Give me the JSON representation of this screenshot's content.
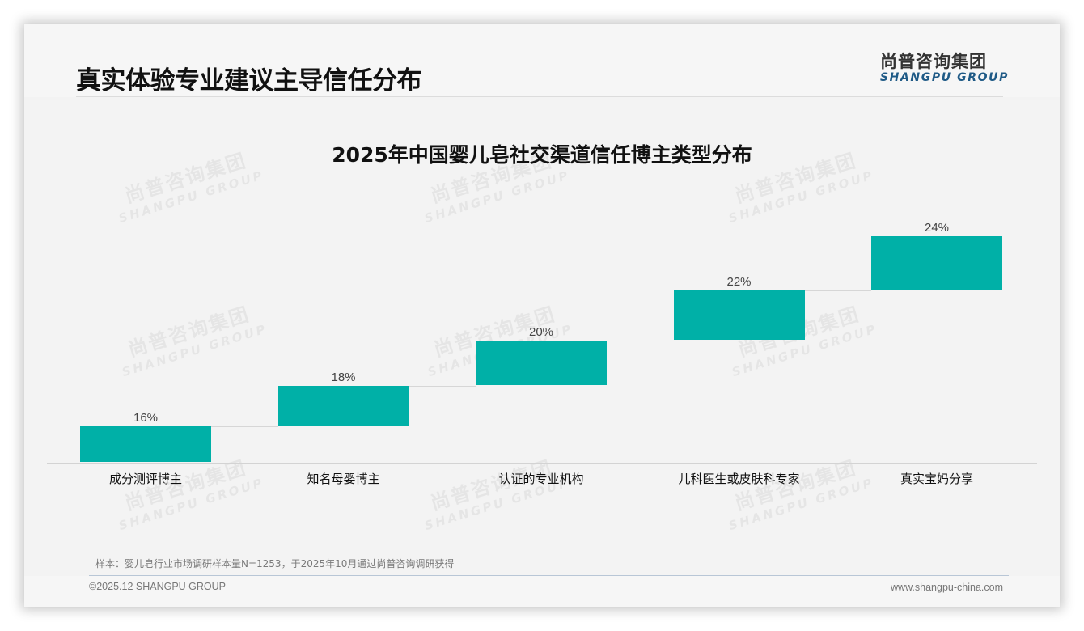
{
  "header": {
    "title": "真实体验专业建议主导信任分布",
    "logo_cn": "尚普咨询集团",
    "logo_en": "SHANGPU GROUP"
  },
  "watermark": {
    "cn": "尚普咨询集团",
    "en": "SHANGPU GROUP"
  },
  "chart_data": {
    "type": "bar",
    "subtype": "waterfall",
    "title": "2025年中国婴儿皂社交渠道信任博主类型分布",
    "categories": [
      "成分测评博主",
      "知名母婴博主",
      "认证的专业机构",
      "儿科医生或皮肤科专家",
      "真实宝妈分享"
    ],
    "values": [
      16,
      18,
      20,
      22,
      24
    ],
    "value_labels": [
      "16%",
      "18%",
      "20%",
      "22%",
      "24%"
    ],
    "unit": "%",
    "xlabel": "",
    "ylabel": "",
    "ylim": [
      0,
      100
    ],
    "grid": false,
    "legend": false,
    "bar_color": "#00b0a7"
  },
  "footer": {
    "note": "样本：婴儿皂行业市场调研样本量N=1253，于2025年10月通过尚普咨询调研获得",
    "copyright": "©2025.12 SHANGPU GROUP",
    "website": "www.shangpu-china.com"
  }
}
